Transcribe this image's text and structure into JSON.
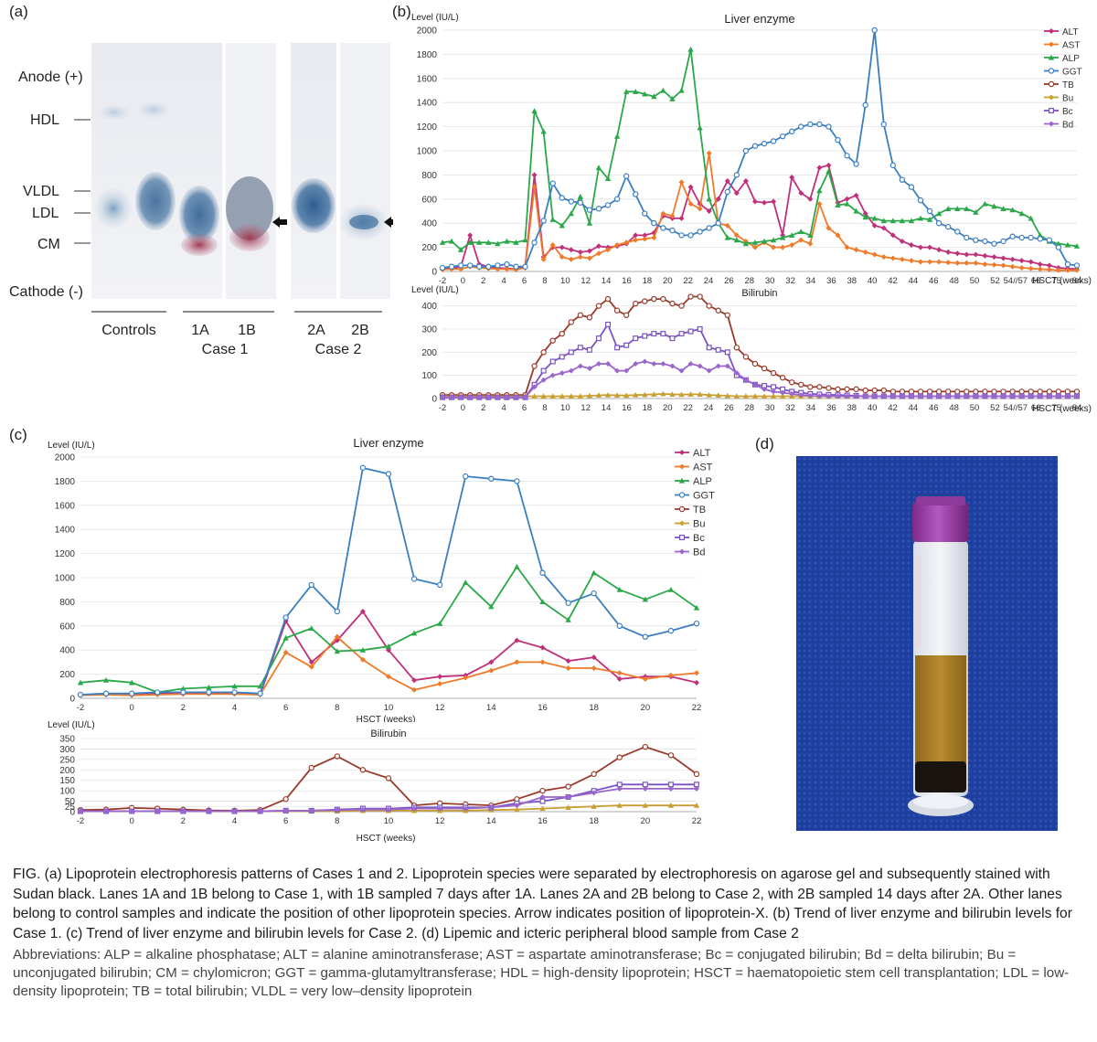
{
  "figure": {
    "panels": {
      "a": "(a)",
      "b": "(b)",
      "c": "(c)",
      "d": "(d)"
    },
    "gel": {
      "anode": "Anode (+)",
      "cathode": "Cathode (-)",
      "bands": [
        "HDL",
        "VLDL",
        "LDL",
        "CM"
      ],
      "lanes": {
        "controls": "Controls",
        "case1_lanes": [
          "1A",
          "1B"
        ],
        "case1": "Case 1",
        "case2_lanes": [
          "2A",
          "2B"
        ],
        "case2": "Case 2"
      }
    },
    "caption": "FIG.  (a) Lipoprotein electrophoresis patterns of Cases 1 and 2. Lipoprotein species were separated by electrophoresis on agarose gel and subsequently stained with Sudan black. Lanes 1A and 1B belong to Case 1, with 1B sampled 7 days after 1A. Lanes 2A and 2B belong to Case 2, with 2B sampled 14 days after 2A. Other lanes belong to control samples and indicate the position of other lipoprotein species. Arrow indicates position of lipoprotein-X. (b) Trend of liver enzyme and bilirubin levels for Case 1. (c) Trend of liver enzyme and bilirubin levels for Case 2. (d) Lipemic and icteric peripheral blood sample from Case 2",
    "abbreviations": "Abbreviations: ALP = alkaline phosphatase; ALT = alanine aminotransferase; AST = aspartate aminotransferase; Bc = conjugated bilirubin; Bd = delta bilirubin; Bu = unconjugated bilirubin; CM = chylomicron; GGT = gamma-glutamyltransferase; HDL = high-density lipoprotein; HSCT = haematopoietic stem cell transplantation; LDL = low-density lipoprotein; TB = total bilirubin; VLDL = very low–density lipoprotein"
  },
  "colors": {
    "ALT": "#c0307a",
    "AST": "#ef7a2a",
    "ALP": "#2ba84a",
    "GGT": "#3a7fc2",
    "TB": "#9a3a2a",
    "Bu": "#c9a030",
    "Bc": "#7a52c4",
    "Bd": "#9a66cc"
  },
  "chart_data": [
    {
      "id": "b-enzyme",
      "type": "line",
      "title": "Liver enzyme",
      "ylabel": "Level (IU/L)",
      "xlabel": "HSCT (weeks)",
      "ylim": [
        0,
        2000
      ],
      "yticks": [
        0,
        200,
        400,
        600,
        800,
        1000,
        1200,
        1400,
        1600,
        1800,
        2000
      ],
      "xtick_labels": [
        "-2",
        "0",
        "2",
        "4",
        "6",
        "8",
        "10",
        "12",
        "14",
        "16",
        "18",
        "20",
        "22",
        "24",
        "26",
        "28",
        "30",
        "32",
        "34",
        "36",
        "38",
        "40",
        "42",
        "44",
        "46",
        "48",
        "50",
        "52",
        "54//57",
        "66",
        "75",
        "84"
      ],
      "n_points": 70,
      "legend": [
        "ALT",
        "AST",
        "ALP",
        "GGT",
        "TB",
        "Bu",
        "Bc",
        "Bd"
      ],
      "series": [
        {
          "name": "ALT",
          "marker": "diamond",
          "values": [
            20,
            25,
            40,
            300,
            60,
            40,
            30,
            25,
            20,
            40,
            800,
            120,
            200,
            200,
            180,
            160,
            170,
            210,
            200,
            210,
            230,
            300,
            300,
            320,
            460,
            440,
            440,
            700,
            560,
            500,
            600,
            750,
            650,
            750,
            580,
            570,
            580,
            300,
            780,
            650,
            600,
            860,
            880,
            570,
            600,
            630,
            480,
            380,
            360,
            300,
            250,
            220,
            200,
            200,
            180,
            160,
            150,
            140,
            140,
            130,
            120,
            110,
            100,
            90,
            80,
            60,
            50,
            30,
            25,
            20
          ]
        },
        {
          "name": "AST",
          "marker": "diamond",
          "values": [
            15,
            20,
            20,
            40,
            30,
            25,
            20,
            20,
            15,
            30,
            700,
            100,
            220,
            120,
            100,
            120,
            110,
            150,
            180,
            220,
            240,
            260,
            270,
            280,
            480,
            460,
            740,
            560,
            520,
            980,
            400,
            380,
            300,
            250,
            200,
            240,
            200,
            200,
            220,
            260,
            230,
            560,
            360,
            300,
            200,
            180,
            160,
            140,
            120,
            110,
            100,
            90,
            80,
            80,
            80,
            75,
            70,
            70,
            70,
            60,
            55,
            50,
            40,
            30,
            25,
            20,
            15,
            10,
            10,
            10
          ]
        },
        {
          "name": "ALP",
          "marker": "triangle",
          "values": [
            240,
            250,
            180,
            240,
            240,
            240,
            230,
            250,
            240,
            260,
            1330,
            1160,
            430,
            380,
            480,
            620,
            400,
            860,
            770,
            1120,
            1490,
            1490,
            1470,
            1450,
            1500,
            1430,
            1500,
            1840,
            1190,
            600,
            400,
            280,
            260,
            230,
            240,
            250,
            260,
            280,
            300,
            330,
            300,
            670,
            830,
            550,
            560,
            500,
            450,
            440,
            420,
            420,
            420,
            420,
            440,
            430,
            480,
            520,
            520,
            520,
            490,
            560,
            540,
            520,
            510,
            480,
            440,
            300,
            250,
            230,
            220,
            210
          ]
        },
        {
          "name": "GGT",
          "marker": "circle",
          "values": [
            30,
            40,
            50,
            50,
            40,
            40,
            50,
            60,
            40,
            40,
            240,
            420,
            730,
            610,
            580,
            570,
            510,
            520,
            550,
            600,
            790,
            640,
            480,
            400,
            360,
            340,
            300,
            300,
            330,
            360,
            400,
            660,
            800,
            1000,
            1040,
            1060,
            1080,
            1120,
            1160,
            1200,
            1220,
            1220,
            1200,
            1090,
            960,
            890,
            1380,
            2000,
            1220,
            880,
            760,
            700,
            590,
            500,
            400,
            370,
            330,
            280,
            260,
            250,
            230,
            250,
            290,
            280,
            280,
            270,
            260,
            200,
            60,
            50
          ]
        }
      ]
    },
    {
      "id": "b-bili",
      "type": "line",
      "title": "Bilirubin",
      "ylabel": "Level (IU/L)",
      "xlabel": "HSCT (weeks)",
      "ylim": [
        0,
        450
      ],
      "yticks": [
        0,
        100,
        200,
        300,
        400
      ],
      "xtick_labels": [
        "-2",
        "0",
        "2",
        "4",
        "6",
        "8",
        "10",
        "12",
        "14",
        "16",
        "18",
        "20",
        "22",
        "24",
        "26",
        "28",
        "30",
        "32",
        "34",
        "36",
        "38",
        "40",
        "42",
        "44",
        "46",
        "48",
        "50",
        "52",
        "54//57",
        "66",
        "75",
        "84"
      ],
      "n_points": 70,
      "series": [
        {
          "name": "TB",
          "marker": "circle",
          "values": [
            15,
            15,
            15,
            15,
            15,
            15,
            15,
            15,
            15,
            15,
            140,
            200,
            250,
            280,
            330,
            360,
            350,
            400,
            430,
            380,
            360,
            410,
            420,
            430,
            430,
            410,
            400,
            440,
            440,
            400,
            380,
            360,
            220,
            180,
            150,
            130,
            110,
            90,
            70,
            60,
            50,
            50,
            45,
            40,
            40,
            40,
            35,
            35,
            35,
            30,
            30,
            30,
            30,
            30,
            30,
            30,
            30,
            30,
            30,
            30,
            30,
            30,
            30,
            30,
            30,
            30,
            30,
            30,
            30,
            30
          ]
        },
        {
          "name": "Bu",
          "marker": "triangle",
          "values": [
            10,
            10,
            10,
            10,
            10,
            10,
            10,
            10,
            10,
            10,
            10,
            10,
            10,
            10,
            10,
            10,
            12,
            14,
            15,
            14,
            13,
            15,
            16,
            18,
            20,
            18,
            17,
            18,
            18,
            15,
            14,
            12,
            10,
            10,
            10,
            10,
            10,
            10,
            10,
            10,
            10,
            10,
            10,
            10,
            10,
            10,
            10,
            10,
            10,
            10,
            10,
            10,
            10,
            10,
            10,
            10,
            10,
            10,
            10,
            10,
            10,
            10,
            10,
            10,
            10,
            10,
            10,
            10,
            10,
            10
          ]
        },
        {
          "name": "Bc",
          "marker": "square",
          "values": [
            5,
            5,
            5,
            5,
            5,
            5,
            5,
            5,
            5,
            5,
            60,
            120,
            160,
            180,
            200,
            220,
            210,
            260,
            320,
            220,
            230,
            260,
            270,
            280,
            280,
            260,
            280,
            290,
            300,
            220,
            210,
            200,
            100,
            80,
            60,
            55,
            50,
            40,
            30,
            25,
            20,
            18,
            16,
            15,
            14,
            12,
            10,
            10,
            10,
            10,
            10,
            10,
            10,
            10,
            10,
            10,
            10,
            10,
            10,
            10,
            10,
            10,
            10,
            10,
            10,
            10,
            10,
            10,
            10,
            10
          ]
        },
        {
          "name": "Bd",
          "marker": "diamond",
          "values": [
            5,
            5,
            5,
            5,
            5,
            5,
            5,
            5,
            5,
            5,
            50,
            80,
            100,
            110,
            120,
            140,
            130,
            150,
            150,
            120,
            120,
            150,
            160,
            150,
            150,
            140,
            120,
            150,
            140,
            120,
            140,
            140,
            110,
            80,
            60,
            40,
            30,
            25,
            20,
            15,
            12,
            10,
            10,
            10,
            10,
            10,
            10,
            10,
            10,
            10,
            10,
            10,
            10,
            10,
            10,
            10,
            10,
            10,
            10,
            10,
            10,
            10,
            10,
            10,
            10,
            10,
            10,
            10,
            10,
            10
          ]
        }
      ]
    },
    {
      "id": "c-enzyme",
      "type": "line",
      "title": "Liver enzyme",
      "ylabel": "Level (IU/L)",
      "xlabel": "HSCT (weeks)",
      "ylim": [
        0,
        2000
      ],
      "yticks": [
        0,
        200,
        400,
        600,
        800,
        1000,
        1200,
        1400,
        1600,
        1800,
        2000
      ],
      "x": [
        -2,
        -1,
        0,
        1,
        2,
        3,
        4,
        5,
        6,
        7,
        8,
        9,
        10,
        11,
        12,
        13,
        14,
        15,
        16,
        17,
        18,
        19,
        20,
        21,
        22
      ],
      "xtick_labels": [
        "-2",
        "0",
        "2",
        "4",
        "6",
        "8",
        "10",
        "12",
        "14",
        "16",
        "18",
        "20",
        "22"
      ],
      "legend": [
        "ALT",
        "AST",
        "ALP",
        "GGT",
        "TB",
        "Bu",
        "Bc",
        "Bd"
      ],
      "series": [
        {
          "name": "ALT",
          "marker": "diamond",
          "values": [
            30,
            30,
            30,
            40,
            40,
            40,
            40,
            30,
            640,
            300,
            480,
            720,
            400,
            150,
            180,
            190,
            300,
            480,
            420,
            310,
            340,
            160,
            180,
            180,
            130
          ]
        },
        {
          "name": "AST",
          "marker": "diamond",
          "values": [
            25,
            30,
            25,
            30,
            35,
            35,
            35,
            30,
            380,
            260,
            510,
            320,
            180,
            70,
            120,
            170,
            230,
            300,
            300,
            250,
            250,
            210,
            160,
            190,
            210
          ]
        },
        {
          "name": "ALP",
          "marker": "triangle",
          "values": [
            130,
            150,
            130,
            50,
            80,
            90,
            100,
            100,
            500,
            580,
            390,
            400,
            430,
            540,
            620,
            960,
            760,
            1090,
            800,
            650,
            1040,
            900,
            820,
            900,
            750
          ]
        },
        {
          "name": "GGT",
          "marker": "circle",
          "values": [
            30,
            40,
            40,
            50,
            50,
            50,
            50,
            40,
            670,
            940,
            720,
            1910,
            1860,
            990,
            940,
            1840,
            1820,
            1800,
            1040,
            790,
            870,
            600,
            510,
            560,
            620
          ]
        }
      ]
    },
    {
      "id": "c-bili",
      "type": "line",
      "title": "Bilirubin",
      "ylabel": "Level (IU/L)",
      "xlabel": "HSCT (weeks)",
      "ylim": [
        0,
        350
      ],
      "yticks": [
        0,
        25,
        50,
        100,
        150,
        200,
        250,
        300,
        350
      ],
      "x": [
        -2,
        -1,
        0,
        1,
        2,
        3,
        4,
        5,
        6,
        7,
        8,
        9,
        10,
        11,
        12,
        13,
        14,
        15,
        16,
        17,
        18,
        19,
        20,
        21,
        22
      ],
      "xtick_labels": [
        "-2",
        "0",
        "2",
        "4",
        "6",
        "8",
        "10",
        "12",
        "14",
        "16",
        "18",
        "20",
        "22"
      ],
      "series": [
        {
          "name": "TB",
          "marker": "circle",
          "values": [
            8,
            10,
            18,
            15,
            10,
            6,
            5,
            8,
            60,
            210,
            265,
            200,
            160,
            30,
            40,
            35,
            30,
            60,
            100,
            120,
            180,
            260,
            310,
            270,
            180
          ]
        },
        {
          "name": "Bu",
          "marker": "triangle",
          "values": [
            2,
            2,
            2,
            2,
            2,
            2,
            2,
            2,
            2,
            2,
            2,
            5,
            5,
            5,
            5,
            5,
            8,
            10,
            15,
            20,
            25,
            30,
            30,
            30,
            30
          ]
        },
        {
          "name": "Bc",
          "marker": "square",
          "values": [
            2,
            2,
            2,
            2,
            2,
            2,
            2,
            2,
            5,
            5,
            10,
            15,
            15,
            20,
            20,
            20,
            20,
            40,
            50,
            70,
            100,
            130,
            130,
            130,
            130
          ]
        },
        {
          "name": "Bd",
          "marker": "diamond",
          "values": [
            2,
            2,
            2,
            2,
            2,
            2,
            2,
            2,
            5,
            5,
            8,
            10,
            10,
            15,
            15,
            15,
            20,
            30,
            70,
            70,
            90,
            110,
            110,
            110,
            110
          ]
        }
      ]
    }
  ]
}
